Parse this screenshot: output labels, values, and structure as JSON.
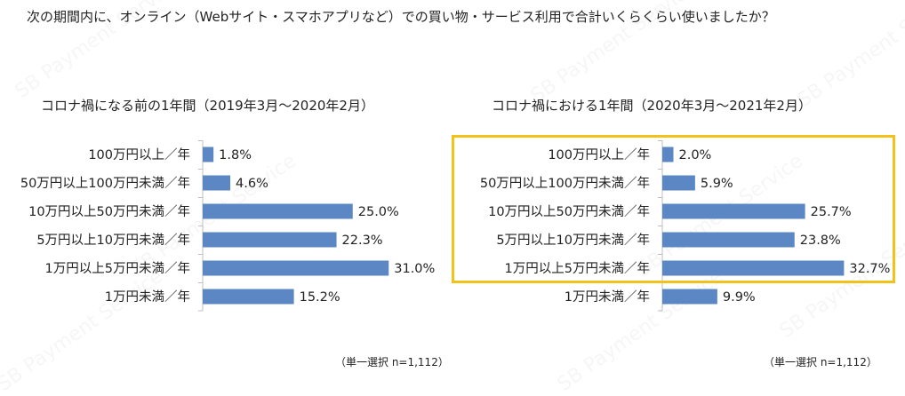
{
  "question": "次の期間内に、オンライン（Webサイト・スマホアプリなど）での買い物・サービス利用で合計いくらくらい使いましたか？",
  "watermark": "SB Payment Service",
  "colors": {
    "bar": "#5b87c5",
    "axis": "#bfbfbf",
    "highlight": "#f2c21b"
  },
  "chart_data": [
    {
      "type": "bar",
      "orientation": "horizontal",
      "title": "コロナ禍になる前の1年間（2019年3月～2020年2月）",
      "categories": [
        "100万円以上／年",
        "50万円以上100万円未満／年",
        "10万円以上50万円未満／年",
        "5万円以上10万円未満／年",
        "1万円以上5万円未満／年",
        "1万円未満／年"
      ],
      "values": [
        1.8,
        4.6,
        25.0,
        22.3,
        31.0,
        15.2
      ],
      "value_labels": [
        "1.8%",
        "4.6%",
        "25.0%",
        "22.3%",
        "31.0%",
        "15.2%"
      ],
      "unit": "%",
      "xlim": [
        0,
        35
      ],
      "note": "（単一選択 n=1,112）"
    },
    {
      "type": "bar",
      "orientation": "horizontal",
      "title": "コロナ禍における1年間（2020年3月～2021年2月）",
      "categories": [
        "100万円以上／年",
        "50万円以上100万円未満／年",
        "10万円以上50万円未満／年",
        "5万円以上10万円未満／年",
        "1万円以上5万円未満／年",
        "1万円未満／年"
      ],
      "values": [
        2.0,
        5.9,
        25.7,
        23.8,
        32.7,
        9.9
      ],
      "value_labels": [
        "2.0%",
        "5.9%",
        "25.7%",
        "23.8%",
        "32.7%",
        "9.9%"
      ],
      "unit": "%",
      "xlim": [
        0,
        35
      ],
      "note": "（単一選択 n=1,112）",
      "highlighted_range": "top five categories"
    }
  ]
}
